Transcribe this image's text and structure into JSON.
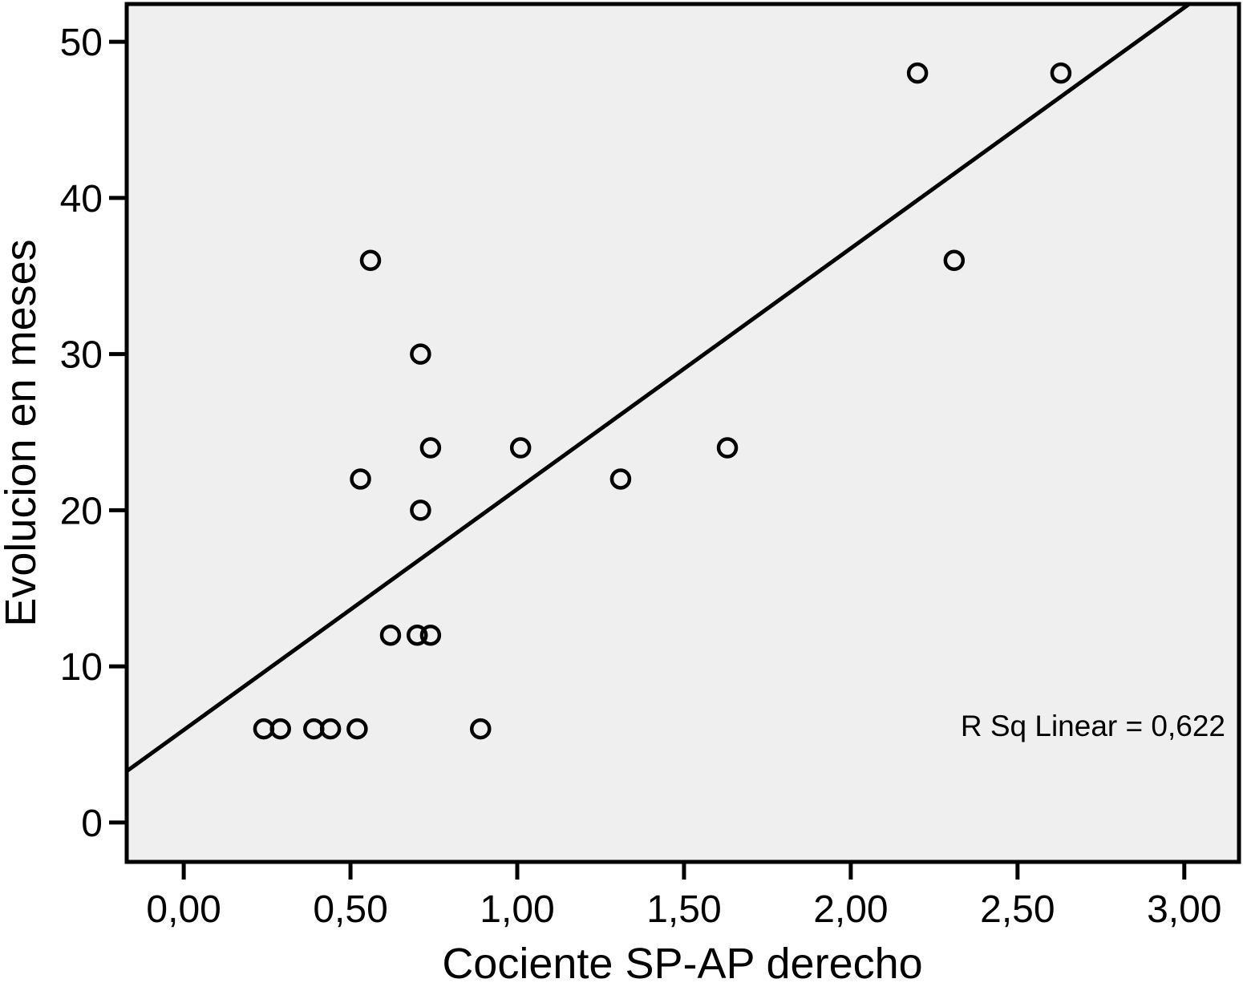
{
  "chart_data": {
    "type": "scatter",
    "title": "",
    "xlabel": "Cociente SP-AP derecho",
    "ylabel": "Evolucion en meses",
    "annotation": "R Sq Linear = 0,622",
    "xlim": [
      -0.171,
      3.164
    ],
    "ylim": [
      -2.52,
      52.42
    ],
    "x_ticks": {
      "values": [
        0,
        0.5,
        1.0,
        1.5,
        2.0,
        2.5,
        3.0
      ],
      "labels": [
        "0,00",
        "0,50",
        "1,00",
        "1,50",
        "2,00",
        "2,50",
        "3,00"
      ]
    },
    "y_ticks": {
      "values": [
        0,
        10,
        20,
        30,
        40,
        50
      ],
      "labels": [
        "0",
        "10",
        "20",
        "30",
        "40",
        "50"
      ]
    },
    "grid": false,
    "legend": "none",
    "points": [
      [
        0.24,
        6
      ],
      [
        0.29,
        6
      ],
      [
        0.39,
        6
      ],
      [
        0.44,
        6
      ],
      [
        0.52,
        6
      ],
      [
        0.89,
        6
      ],
      [
        0.62,
        12
      ],
      [
        0.7,
        12
      ],
      [
        0.74,
        12
      ],
      [
        0.71,
        20
      ],
      [
        0.53,
        22
      ],
      [
        1.31,
        22
      ],
      [
        0.74,
        24
      ],
      [
        1.01,
        24
      ],
      [
        1.63,
        24
      ],
      [
        0.71,
        30
      ],
      [
        0.56,
        36
      ],
      [
        2.31,
        36
      ],
      [
        2.2,
        48
      ],
      [
        2.63,
        48
      ]
    ],
    "fit_line": {
      "x1": -0.171,
      "y1": 3.29,
      "x2": 3.014,
      "y2": 52.41
    },
    "colors": {
      "foreground": "#000000",
      "plot_background": "#efefef",
      "outer_background": "#ffffff"
    }
  }
}
